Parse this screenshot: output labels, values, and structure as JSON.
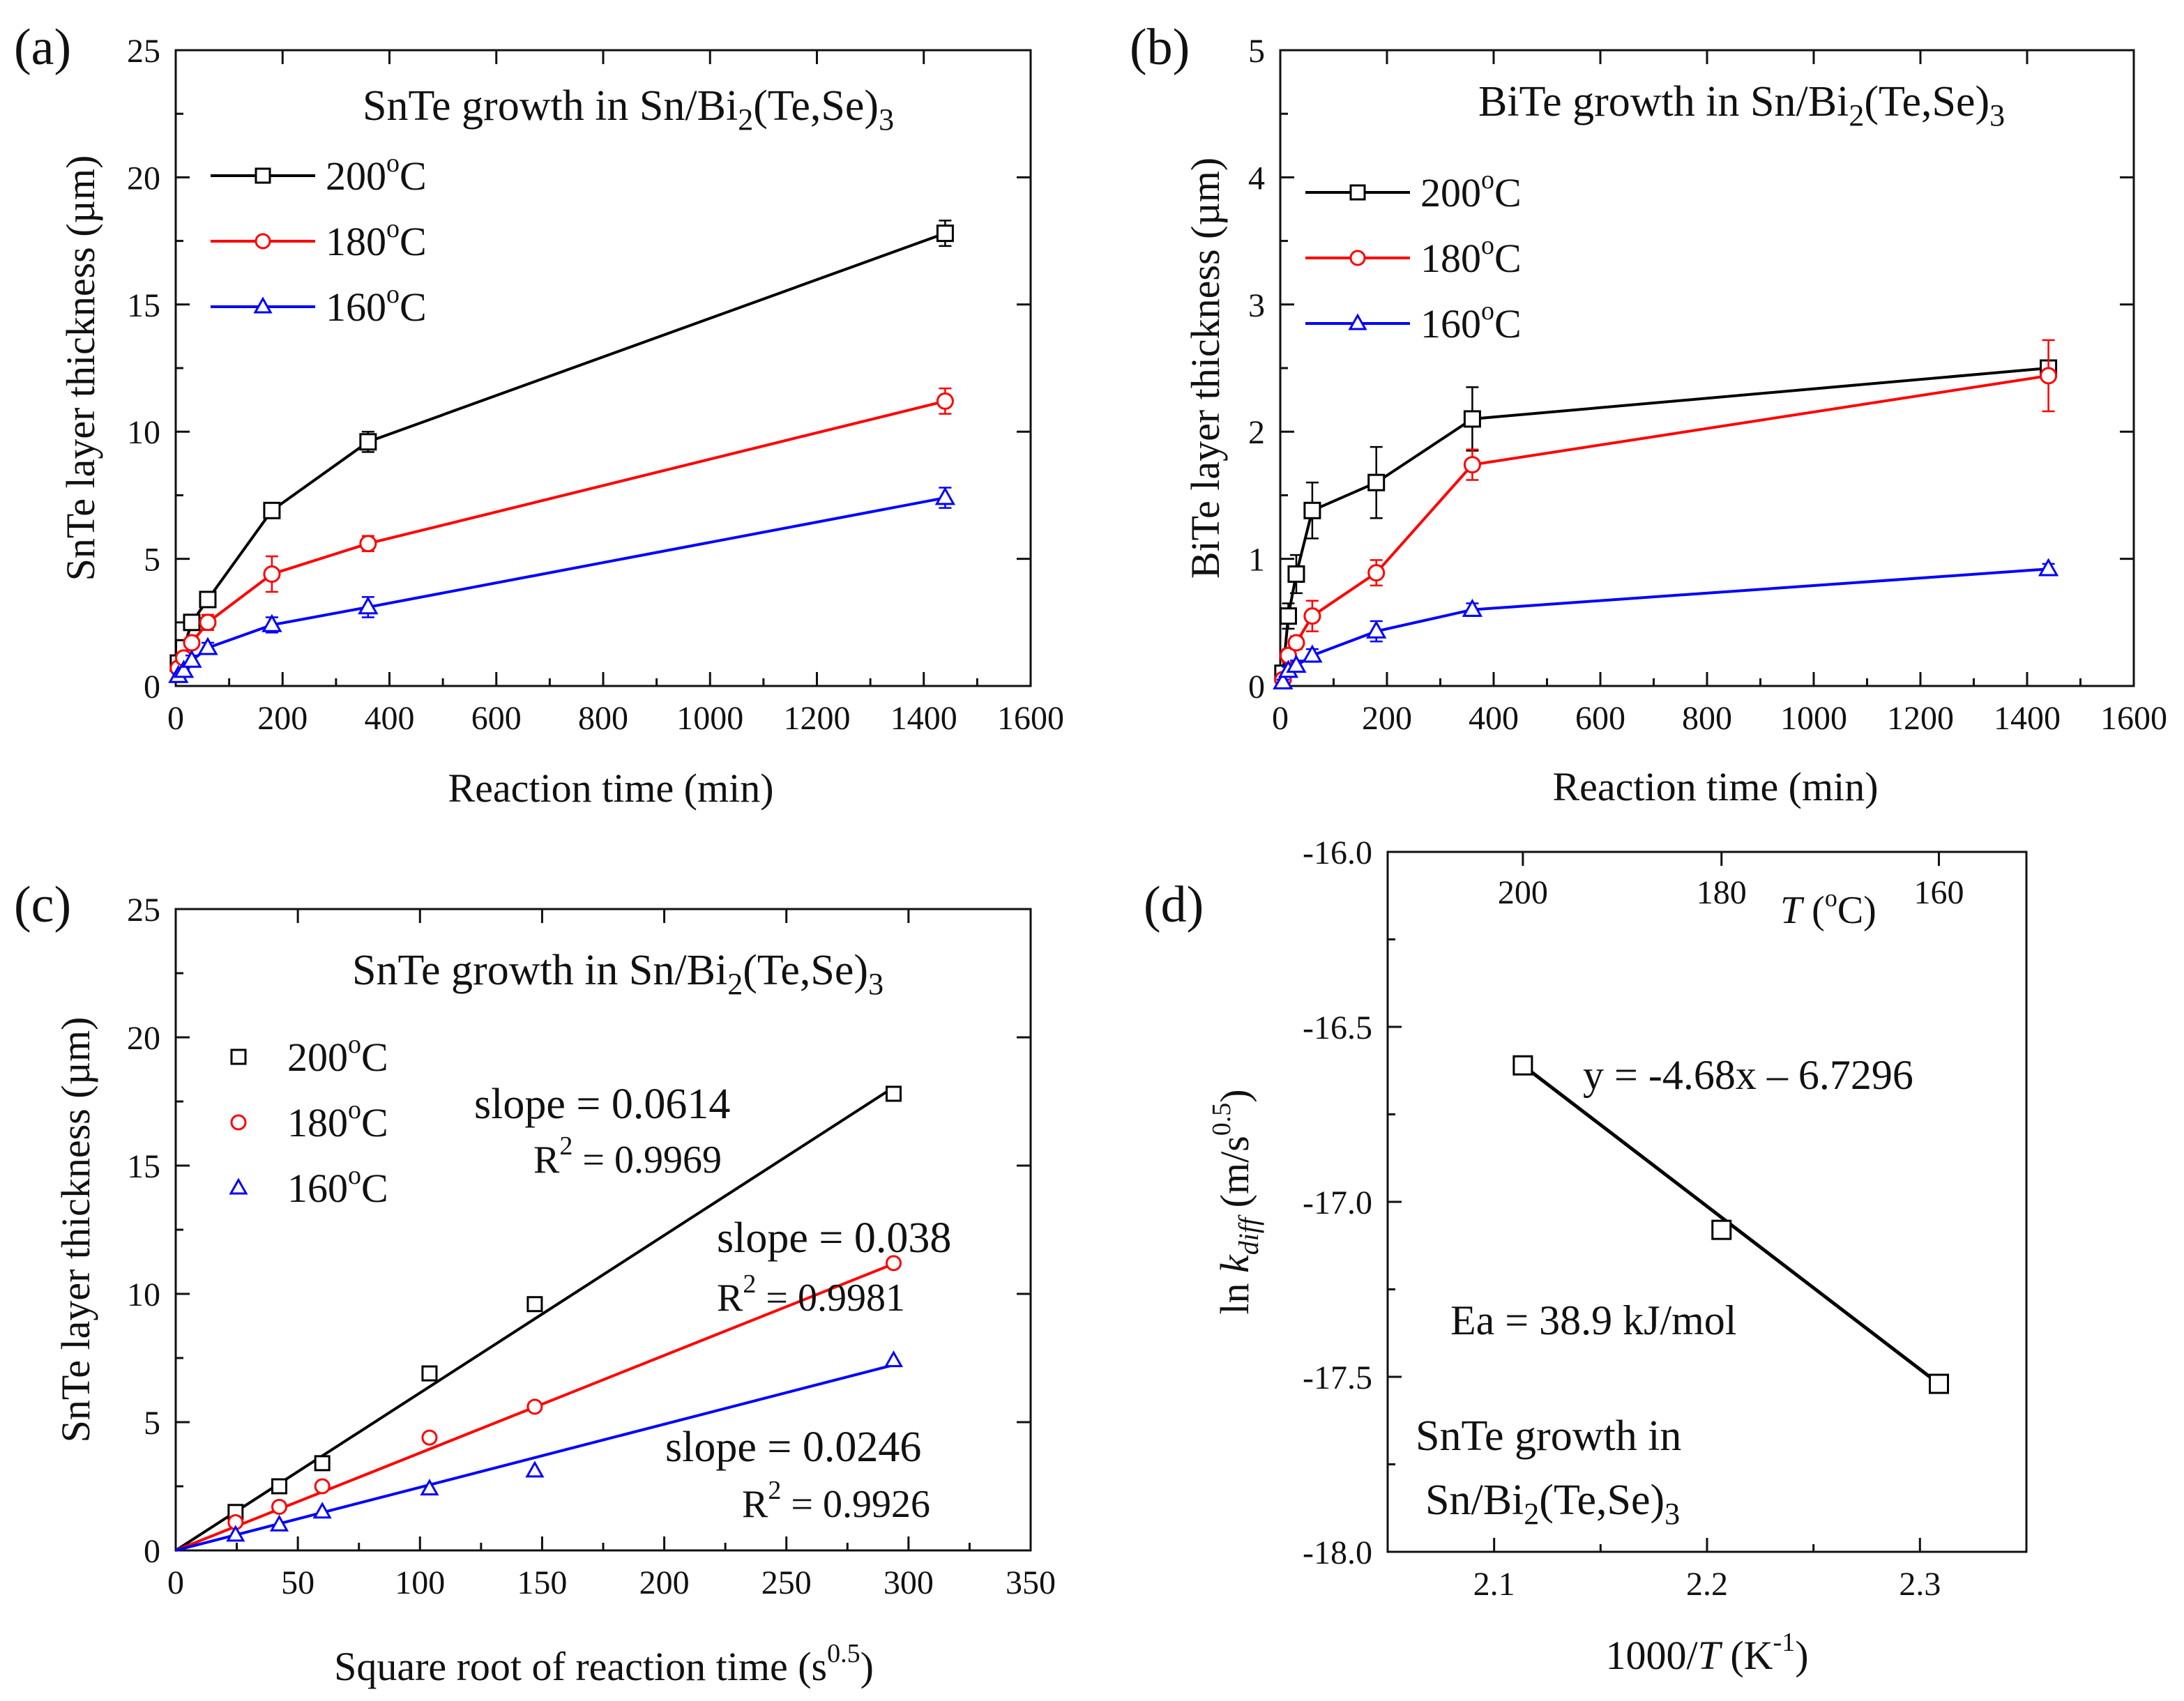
{
  "chart_data": [
    {
      "panel": "(a)",
      "type": "line",
      "title_main": "SnTe growth in Sn/Bi",
      "title_sub": "2",
      "title_tail": "(Te,Se)",
      "title_sub2": "3",
      "xlabel": "Reaction time (min)",
      "ylabel": "SnTe layer thickness (µm)",
      "xlim": [
        0,
        1600
      ],
      "ylim": [
        0,
        25
      ],
      "xticks": [
        0,
        200,
        400,
        600,
        800,
        1000,
        1200,
        1400,
        1600
      ],
      "yticks": [
        0,
        5,
        10,
        15,
        20,
        25
      ],
      "legend": "top-left",
      "series": [
        {
          "name": "200°C",
          "label_main": "200",
          "label_sup": "o",
          "label_tail": "C",
          "color": "#000000",
          "marker": "square",
          "x": [
            5,
            15,
            30,
            60,
            180,
            360,
            1440
          ],
          "y": [
            0.9,
            1.5,
            2.5,
            3.4,
            6.9,
            9.6,
            17.8
          ],
          "err": [
            0.2,
            0.2,
            0.3,
            0.3,
            0.2,
            0.4,
            0.5
          ]
        },
        {
          "name": "180°C",
          "label_main": "180",
          "label_sup": "o",
          "label_tail": "C",
          "color": "#ff0000",
          "marker": "circle",
          "x": [
            5,
            15,
            30,
            60,
            180,
            360,
            1440
          ],
          "y": [
            0.7,
            1.1,
            1.7,
            2.5,
            4.4,
            5.6,
            11.2
          ],
          "err": [
            0.2,
            0.2,
            0.2,
            0.3,
            0.7,
            0.3,
            0.5
          ]
        },
        {
          "name": "160°C",
          "label_main": "160",
          "label_sup": "o",
          "label_tail": "C",
          "color": "#0000ff",
          "marker": "triangle",
          "x": [
            5,
            15,
            30,
            60,
            180,
            360,
            1440
          ],
          "y": [
            0.4,
            0.6,
            1.0,
            1.5,
            2.4,
            3.1,
            7.4
          ],
          "err": [
            0.1,
            0.1,
            0.2,
            0.2,
            0.3,
            0.4,
            0.4
          ]
        }
      ]
    },
    {
      "panel": "(b)",
      "type": "line",
      "title_main": "BiTe growth in Sn/Bi",
      "title_sub": "2",
      "title_tail": "(Te,Se)",
      "title_sub2": "3",
      "xlabel": "Reaction time (min)",
      "ylabel": "BiTe layer thickness (µm)",
      "xlim": [
        0,
        1600
      ],
      "ylim": [
        0,
        5
      ],
      "xticks": [
        0,
        200,
        400,
        600,
        800,
        1000,
        1200,
        1400,
        1600
      ],
      "yticks": [
        0,
        1,
        2,
        3,
        4,
        5
      ],
      "legend": "top-left",
      "series": [
        {
          "name": "200°C",
          "label_main": "200",
          "label_sup": "o",
          "label_tail": "C",
          "color": "#000000",
          "marker": "square",
          "x": [
            5,
            15,
            30,
            60,
            180,
            360,
            1440
          ],
          "y": [
            0.1,
            0.55,
            0.88,
            1.38,
            1.6,
            2.1,
            2.5
          ],
          "err": [
            0.05,
            0.1,
            0.15,
            0.22,
            0.28,
            0.25,
            0.05
          ]
        },
        {
          "name": "180°C",
          "label_main": "180",
          "label_sup": "o",
          "label_tail": "C",
          "color": "#ff0000",
          "marker": "circle",
          "x": [
            5,
            15,
            30,
            60,
            180,
            360,
            1440
          ],
          "y": [
            0.05,
            0.24,
            0.34,
            0.55,
            0.89,
            1.74,
            2.44
          ],
          "err": [
            0.03,
            0.05,
            0.05,
            0.12,
            0.1,
            0.12,
            0.28
          ]
        },
        {
          "name": "160°C",
          "label_main": "160",
          "label_sup": "o",
          "label_tail": "C",
          "color": "#0000ff",
          "marker": "triangle",
          "x": [
            5,
            15,
            30,
            60,
            180,
            360,
            1440
          ],
          "y": [
            0.03,
            0.12,
            0.16,
            0.24,
            0.43,
            0.6,
            0.92
          ],
          "err": [
            0.02,
            0.03,
            0.04,
            0.05,
            0.08,
            0.05,
            0.04
          ]
        }
      ]
    },
    {
      "panel": "(c)",
      "type": "scatter",
      "title_main": "SnTe growth in Sn/Bi",
      "title_sub": "2",
      "title_tail": "(Te,Se)",
      "title_sub2": "3",
      "xlabel_main": "Square root of reaction time (s",
      "xlabel_sup": "0.5",
      "xlabel_tail": ")",
      "ylabel": "SnTe layer thickness (µm)",
      "xlim": [
        0,
        350
      ],
      "ylim": [
        0,
        25
      ],
      "xticks": [
        0,
        50,
        100,
        150,
        200,
        250,
        300,
        350
      ],
      "yticks": [
        0,
        5,
        10,
        15,
        20,
        25
      ],
      "legend": "top-left",
      "series": [
        {
          "name": "200°C",
          "label_main": "200",
          "label_sup": "o",
          "label_tail": "C",
          "color": "#000000",
          "marker": "square",
          "x": [
            24.5,
            42.4,
            60,
            103.9,
            147,
            293.9
          ],
          "y": [
            1.5,
            2.5,
            3.4,
            6.9,
            9.6,
            17.8
          ],
          "fit_x": [
            0,
            293.9
          ],
          "fit_y": [
            0,
            18.05
          ],
          "slope_text": "slope = 0.0614",
          "r2_main": "R",
          "r2_sup": "2",
          "r2_tail": " = 0.9969"
        },
        {
          "name": "180°C",
          "label_main": "180",
          "label_sup": "o",
          "label_tail": "C",
          "color": "#ff0000",
          "marker": "circle",
          "x": [
            24.5,
            42.4,
            60,
            103.9,
            147,
            293.9
          ],
          "y": [
            1.1,
            1.7,
            2.5,
            4.4,
            5.6,
            11.2
          ],
          "fit_x": [
            0,
            293.9
          ],
          "fit_y": [
            0,
            11.17
          ],
          "slope_text": "slope = 0.038",
          "r2_main": "R",
          "r2_sup": "2",
          "r2_tail": " = 0.9981"
        },
        {
          "name": "160°C",
          "label_main": "160",
          "label_sup": "o",
          "label_tail": "C",
          "color": "#0000ff",
          "marker": "triangle",
          "x": [
            24.5,
            42.4,
            60,
            103.9,
            147,
            293.9
          ],
          "y": [
            0.6,
            1.0,
            1.5,
            2.4,
            3.1,
            7.4
          ],
          "fit_x": [
            0,
            293.9
          ],
          "fit_y": [
            0,
            7.23
          ],
          "slope_text": "slope = 0.0246",
          "r2_main": "R",
          "r2_sup": "2",
          "r2_tail": " = 0.9926"
        }
      ]
    },
    {
      "panel": "(d)",
      "type": "scatter",
      "xlabel_main": "1000/",
      "xlabel_italic": "T",
      "xlabel_tail": " (K",
      "xlabel_sup": "-1",
      "xlabel_end": ")",
      "ylabel_main": "ln ",
      "ylabel_italic": "k",
      "ylabel_sub": "diff",
      "ylabel_tail": "  (m/s",
      "ylabel_sup": "0.5",
      "ylabel_end": ")",
      "top_axis_label_italic": "T",
      "top_axis_label_tail": " (",
      "top_axis_label_sup": "o",
      "top_axis_label_end": "C)",
      "top_ticks": [
        {
          "label": "200",
          "x": 2.1135
        },
        {
          "label": "180",
          "x": 2.2068
        },
        {
          "label": "160",
          "x": 2.3089
        }
      ],
      "xlim": [
        2.05,
        2.35
      ],
      "ylim": [
        -18.0,
        -16.0
      ],
      "xticks": [
        2.1,
        2.2,
        2.3
      ],
      "xtick_labels": [
        "2.1",
        "2.2",
        "2.3"
      ],
      "yticks": [
        -18.0,
        -17.5,
        -17.0,
        -16.5,
        -16.0
      ],
      "ytick_labels": [
        "-18.0",
        "-17.5",
        "-17.0",
        "-16.5",
        "-16.0"
      ],
      "points": {
        "x": [
          2.1135,
          2.2068,
          2.3089
        ],
        "y": [
          -16.61,
          -17.08,
          -17.52
        ]
      },
      "fit": {
        "x": [
          2.1135,
          2.3089
        ],
        "y": [
          -16.61,
          -17.52
        ]
      },
      "equation": "y = -4.68x – 6.7296",
      "ea_text": "Ea = 38.9 kJ/mol",
      "note_line1": "SnTe growth in",
      "note_line2_main": "Sn/Bi",
      "note_line2_sub": "2",
      "note_line2_tail": "(Te,Se)",
      "note_line2_sub2": "3"
    }
  ]
}
